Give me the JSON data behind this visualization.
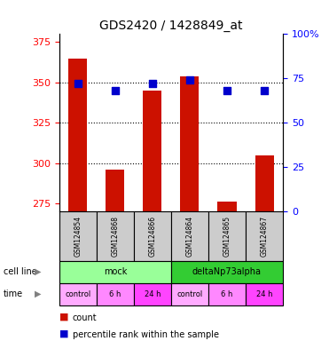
{
  "title": "GDS2420 / 1428849_at",
  "samples": [
    "GSM124854",
    "GSM124868",
    "GSM124866",
    "GSM124864",
    "GSM124865",
    "GSM124867"
  ],
  "counts": [
    365,
    296,
    345,
    354,
    276,
    305
  ],
  "percentile_ranks": [
    72,
    68,
    72,
    74,
    68,
    68
  ],
  "ylim_left": [
    270,
    380
  ],
  "ylim_right": [
    0,
    100
  ],
  "left_ticks": [
    275,
    300,
    325,
    350,
    375
  ],
  "right_ticks": [
    0,
    25,
    50,
    75,
    100
  ],
  "right_tick_labels": [
    "0",
    "25",
    "50",
    "75",
    "100%"
  ],
  "grid_values": [
    300,
    325,
    350
  ],
  "cell_line_groups": [
    {
      "label": "mock",
      "span": [
        0,
        3
      ],
      "color": "#99ff99"
    },
    {
      "label": "deltaNp73alpha",
      "span": [
        3,
        6
      ],
      "color": "#33cc33"
    }
  ],
  "time_labels": [
    "control",
    "6 h",
    "24 h",
    "control",
    "6 h",
    "24 h"
  ],
  "time_colors": [
    "#ffaaff",
    "#ff88ff",
    "#ff44ff",
    "#ffaaff",
    "#ff88ff",
    "#ff44ff"
  ],
  "bar_color": "#cc1100",
  "dot_color": "#0000cc",
  "bar_width": 0.5,
  "dot_size": 30,
  "background_color": "#ffffff",
  "legend_count_color": "#cc1100",
  "legend_dot_color": "#0000cc"
}
